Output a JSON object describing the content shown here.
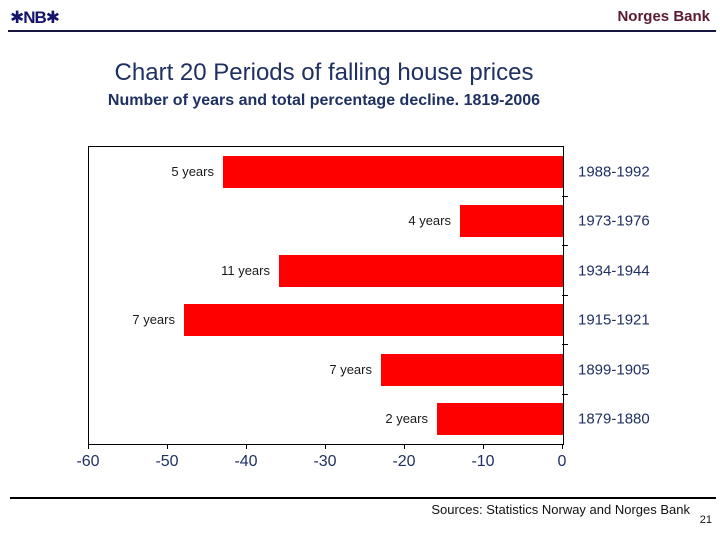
{
  "header": {
    "logo_text": "✱NB✱",
    "bank_name": "Norges Bank"
  },
  "title": "Chart 20 Periods of falling house prices",
  "subtitle": "Number of years and total percentage decline. 1819-2006",
  "colors": {
    "navy_text": "#1F3062",
    "bank_name_maroon": "#5C1B33",
    "logo_navy": "#14146B",
    "bar_red": "#FE0000"
  },
  "chart_data": {
    "type": "bar",
    "orientation": "horizontal",
    "title": "Chart 20 Periods of falling house prices",
    "subtitle": "Number of years and total percentage decline. 1819-2006",
    "categories": [
      "1988-1992",
      "1973-1976",
      "1934-1944",
      "1915-1921",
      "1899-1905",
      "1879-1880"
    ],
    "bar_labels": [
      "5 years",
      "4 years",
      "11 years",
      "7 years",
      "7 years",
      "2 years"
    ],
    "values": [
      -43,
      -13,
      -36,
      -48,
      -23,
      -16
    ],
    "xlim": [
      -60,
      0
    ],
    "xticks": [
      "-60",
      "-50",
      "-40",
      "-30",
      "-20",
      "-10",
      "0"
    ],
    "grid": false,
    "legend": "none",
    "bar_color": "#FE0000",
    "category_axis_side": "right"
  },
  "footer": {
    "sources": "Sources: Statistics Norway and Norges Bank",
    "page_number": "21"
  }
}
